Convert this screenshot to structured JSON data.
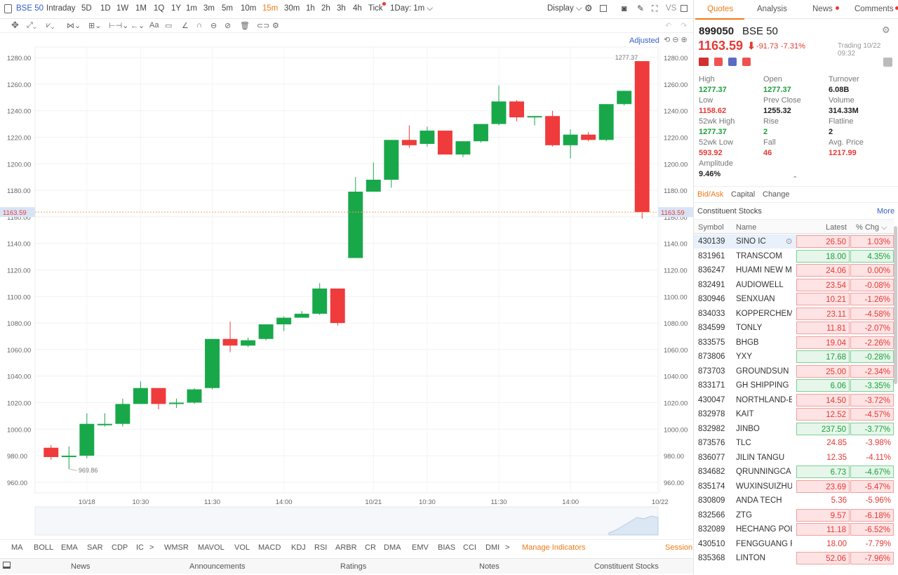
{
  "topbar": {
    "symbol": "BSE 50",
    "periods": [
      "Intraday",
      "5D",
      "1D",
      "1W",
      "1M",
      "1Q",
      "1Y",
      "1m",
      "3m",
      "5m",
      "10m",
      "15m",
      "30m",
      "1h",
      "2h",
      "3h",
      "4h",
      "Tick"
    ],
    "active_period": "15m",
    "interval_select": "1Day: 1m",
    "display_label": "Display"
  },
  "indicators": [
    "MA",
    "BOLL",
    "EMA",
    "SAR",
    "CDP",
    "IC",
    "WMSR",
    "MAVOL",
    "VOL",
    "MACD",
    "KDJ",
    "RSI",
    "ARBR",
    "CR",
    "DMA",
    "EMV",
    "BIAS",
    "CCI",
    "DMI"
  ],
  "manage_indicators": "Manage Indicators",
  "session_label": "Session",
  "bottom_tabs": [
    "News",
    "Announcements",
    "Ratings",
    "Notes",
    "Constituent Stocks"
  ],
  "side": {
    "tabs": [
      "Quotes",
      "Analysis",
      "News",
      "Comments"
    ],
    "code": "899050",
    "name": "BSE 50",
    "price": "1163.59",
    "change": "-91.73",
    "change_pct": "-7.31%",
    "status": "Trading 10/22 09:32",
    "stats": [
      {
        "label": "High",
        "value": "1277.37",
        "color": "g"
      },
      {
        "label": "Open",
        "value": "1277.37",
        "color": "g"
      },
      {
        "label": "Turnover",
        "value": "6.08B",
        "color": "k"
      },
      {
        "label": "Low",
        "value": "1158.62",
        "color": "r"
      },
      {
        "label": "Prev Close",
        "value": "1255.32",
        "color": "k"
      },
      {
        "label": "Volume",
        "value": "314.33M",
        "color": "k"
      },
      {
        "label": "52wk High",
        "value": "1277.37",
        "color": "g"
      },
      {
        "label": "Rise",
        "value": "2",
        "color": "g"
      },
      {
        "label": "Flatline",
        "value": "2",
        "color": "k"
      },
      {
        "label": "52wk Low",
        "value": "593.92",
        "color": "r"
      },
      {
        "label": "Fall",
        "value": "46",
        "color": "r"
      },
      {
        "label": "Avg. Price",
        "value": "1217.99",
        "color": "r"
      },
      {
        "label": "Amplitude",
        "value": "9.46%",
        "color": "k"
      }
    ],
    "subtabs": [
      "Bid/Ask",
      "Capital",
      "Change"
    ],
    "constituents_title": "Constituent Stocks",
    "more": "More",
    "columns": [
      "Symbol",
      "Name",
      "Latest",
      "% Chg"
    ],
    "rows": [
      [
        "430139",
        "SINO IC",
        "26.50",
        "1.03%",
        "r",
        "r"
      ],
      [
        "831961",
        "TRANSCOM",
        "18.00",
        "4.35%",
        "g",
        "g"
      ],
      [
        "836247",
        "HUAMI NEW M",
        "24.06",
        "0.00%",
        "r",
        "r"
      ],
      [
        "832491",
        "AUDIOWELL",
        "23.54",
        "-0.08%",
        "r",
        "r"
      ],
      [
        "830946",
        "SENXUAN",
        "10.21",
        "-1.26%",
        "r",
        "r"
      ],
      [
        "834033",
        "KOPPERCHEM",
        "23.11",
        "-4.58%",
        "r",
        "r"
      ],
      [
        "834599",
        "TONLY",
        "11.81",
        "-2.07%",
        "r",
        "r"
      ],
      [
        "833575",
        "BHGB",
        "19.04",
        "-2.26%",
        "r",
        "r"
      ],
      [
        "873806",
        "YXY",
        "17.68",
        "-0.28%",
        "g",
        "g"
      ],
      [
        "873703",
        "GROUNDSUN",
        "25.00",
        "-2.34%",
        "r",
        "r"
      ],
      [
        "833171",
        "GH SHIPPING",
        "6.06",
        "-3.35%",
        "g",
        "g"
      ],
      [
        "430047",
        "NORTHLAND-E",
        "14.50",
        "-3.72%",
        "r",
        "r"
      ],
      [
        "832978",
        "KAIT",
        "12.52",
        "-4.57%",
        "r",
        "r"
      ],
      [
        "832982",
        "JINBO",
        "237.50",
        "-3.77%",
        "g",
        "g"
      ],
      [
        "873576",
        "TLC",
        "24.85",
        "-3.98%",
        "n",
        "n"
      ],
      [
        "836077",
        "JILIN TANGU",
        "12.35",
        "-4.11%",
        "n",
        "n"
      ],
      [
        "834682",
        "QRUNNINGCA",
        "6.73",
        "-4.67%",
        "g",
        "g"
      ],
      [
        "835174",
        "WUXINSUIZHU",
        "23.69",
        "-5.47%",
        "r",
        "r"
      ],
      [
        "830809",
        "ANDA TECH",
        "5.36",
        "-5.96%",
        "n",
        "n"
      ],
      [
        "832566",
        "ZTG",
        "9.57",
        "-6.18%",
        "r",
        "r"
      ],
      [
        "832089",
        "HECHANG POL",
        "11.18",
        "-6.52%",
        "r",
        "r"
      ],
      [
        "430510",
        "FENGGUANG F",
        "18.00",
        "-7.79%",
        "n",
        "n"
      ],
      [
        "835368",
        "LINTON",
        "52.06",
        "-7.96%",
        "r",
        "r"
      ]
    ]
  },
  "chart_data": {
    "type": "candlestick",
    "adjust_label": "Adjusted",
    "y_ticks": [
      960,
      980,
      1000,
      1020,
      1040,
      1060,
      1080,
      1100,
      1120,
      1140,
      1160,
      1180,
      1200,
      1220,
      1240,
      1260,
      1280
    ],
    "ylim": [
      952,
      1288
    ],
    "x_tick_labels": [
      {
        "label": "10/18",
        "i": 2
      },
      {
        "label": "10:30",
        "i": 5
      },
      {
        "label": "11:30",
        "i": 9
      },
      {
        "label": "14:00",
        "i": 13
      },
      {
        "label": "10/21",
        "i": 18
      },
      {
        "label": "10:30",
        "i": 21
      },
      {
        "label": "11:30",
        "i": 25
      },
      {
        "label": "14:00",
        "i": 29
      },
      {
        "label": "10/22",
        "i": 34
      }
    ],
    "current_price": "1163.59",
    "max_label": "1277.37",
    "min_label": "969.86",
    "candles": [
      [
        986,
        979,
        988,
        977
      ],
      [
        979,
        980,
        987,
        970
      ],
      [
        980,
        1004,
        1012,
        978
      ],
      [
        1003,
        1004,
        1012,
        1002
      ],
      [
        1004,
        1019,
        1023,
        1002
      ],
      [
        1019,
        1031,
        1036,
        1019
      ],
      [
        1031,
        1019,
        1031,
        1015
      ],
      [
        1019,
        1020,
        1023,
        1016
      ],
      [
        1020,
        1030,
        1031,
        1019
      ],
      [
        1031,
        1068,
        1068,
        1030
      ],
      [
        1068,
        1063,
        1081,
        1058
      ],
      [
        1063,
        1067,
        1069,
        1062
      ],
      [
        1068,
        1079,
        1079,
        1067
      ],
      [
        1079,
        1084,
        1085,
        1074
      ],
      [
        1084,
        1087,
        1089,
        1084
      ],
      [
        1087,
        1106,
        1110,
        1086
      ],
      [
        1106,
        1080,
        1106,
        1078
      ],
      [
        1129,
        1179,
        1190,
        1129
      ],
      [
        1179,
        1188,
        1201,
        1179
      ],
      [
        1188,
        1218,
        1218,
        1182
      ],
      [
        1218,
        1214,
        1229,
        1212
      ],
      [
        1215,
        1225,
        1228,
        1213
      ],
      [
        1225,
        1207,
        1225,
        1207
      ],
      [
        1207,
        1217,
        1217,
        1205
      ],
      [
        1217,
        1230,
        1230,
        1216
      ],
      [
        1230,
        1247,
        1259,
        1229
      ],
      [
        1247,
        1235,
        1248,
        1232
      ],
      [
        1235,
        1236,
        1236,
        1229
      ],
      [
        1236,
        1214,
        1240,
        1213
      ],
      [
        1214,
        1222,
        1226,
        1204
      ],
      [
        1222,
        1218,
        1224,
        1217
      ],
      [
        1218,
        1245,
        1245,
        1217
      ],
      [
        1245,
        1255,
        1255,
        1244
      ],
      [
        1277.37,
        1163.59,
        1277.37,
        1158.62
      ]
    ]
  },
  "colors": {
    "up": "#18a84a",
    "down": "#ef3b3b",
    "accent": "#f07a16"
  }
}
